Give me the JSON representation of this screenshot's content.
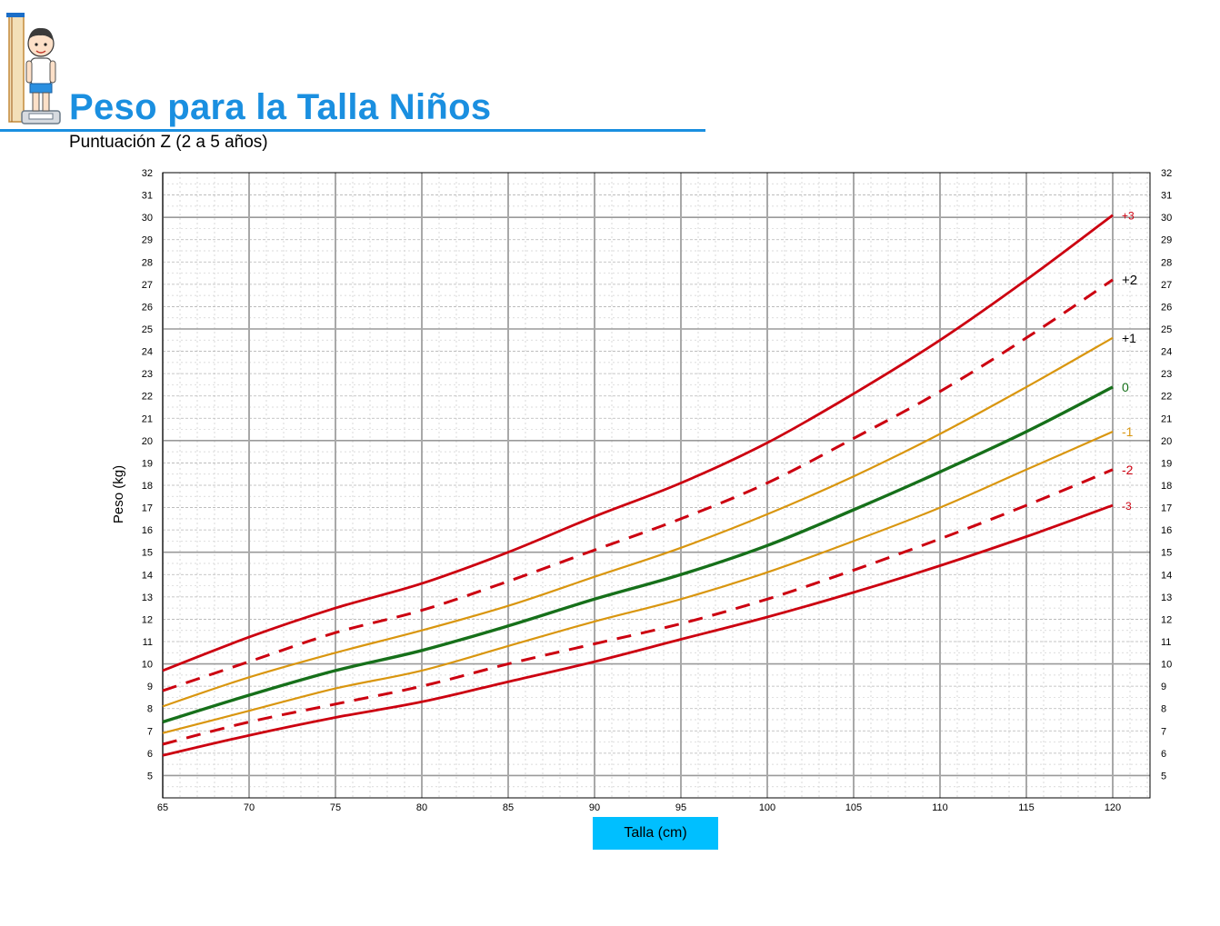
{
  "header": {
    "logo_icon": "child-on-scale-icon",
    "title": "Peso para la    Talla  Niños",
    "subtitle": "Puntuación Z (2 a 5 años)"
  },
  "colors": {
    "title": "#1a8fe0",
    "extreme": "#cc0010",
    "one_sd": "#d9960f",
    "median": "#16701a",
    "xlabel_box": "#00bfff"
  },
  "chart_data": {
    "type": "line",
    "title": "",
    "xlabel": "Talla (cm)",
    "ylabel": "Peso (kg)",
    "xlim": [
      65,
      120
    ],
    "ylim": [
      4,
      32
    ],
    "x_ticks": [
      65,
      70,
      75,
      80,
      85,
      90,
      95,
      100,
      105,
      110,
      115,
      120
    ],
    "y_ticks": [
      5,
      6,
      7,
      8,
      9,
      10,
      11,
      12,
      13,
      14,
      15,
      16,
      17,
      18,
      19,
      20,
      21,
      22,
      23,
      24,
      25,
      26,
      27,
      28,
      29,
      30,
      31,
      32
    ],
    "grid": true,
    "legend": "curve end labels at right",
    "x": [
      65,
      70,
      75,
      80,
      85,
      90,
      95,
      100,
      105,
      110,
      115,
      120
    ],
    "series": [
      {
        "name": "+3",
        "color": "#cc0010",
        "style": "solid",
        "values": [
          9.7,
          11.2,
          12.5,
          13.6,
          15.0,
          16.6,
          18.1,
          19.9,
          22.1,
          24.5,
          27.2,
          30.1
        ]
      },
      {
        "name": "+2",
        "color": "#cc0010",
        "style": "dashed",
        "values": [
          8.8,
          10.1,
          11.4,
          12.4,
          13.7,
          15.1,
          16.5,
          18.1,
          20.1,
          22.2,
          24.6,
          27.2
        ]
      },
      {
        "name": "+1",
        "color": "#d9960f",
        "style": "solid",
        "values": [
          8.1,
          9.4,
          10.5,
          11.5,
          12.6,
          13.9,
          15.2,
          16.7,
          18.4,
          20.3,
          22.4,
          24.6
        ]
      },
      {
        "name": "0",
        "color": "#16701a",
        "style": "solid",
        "values": [
          7.4,
          8.6,
          9.7,
          10.6,
          11.7,
          12.9,
          14.0,
          15.3,
          16.9,
          18.6,
          20.4,
          22.4
        ]
      },
      {
        "name": "-1",
        "color": "#d9960f",
        "style": "solid",
        "values": [
          6.9,
          7.9,
          8.9,
          9.7,
          10.8,
          11.9,
          12.9,
          14.1,
          15.5,
          17.0,
          18.7,
          20.4
        ]
      },
      {
        "name": "-2",
        "color": "#cc0010",
        "style": "dashed",
        "values": [
          6.4,
          7.4,
          8.2,
          9.0,
          10.0,
          10.9,
          11.8,
          12.9,
          14.2,
          15.6,
          17.1,
          18.7
        ]
      },
      {
        "name": "-3",
        "color": "#cc0010",
        "style": "solid",
        "values": [
          5.9,
          6.8,
          7.6,
          8.3,
          9.2,
          10.1,
          11.1,
          12.1,
          13.2,
          14.4,
          15.7,
          17.1
        ]
      }
    ]
  }
}
